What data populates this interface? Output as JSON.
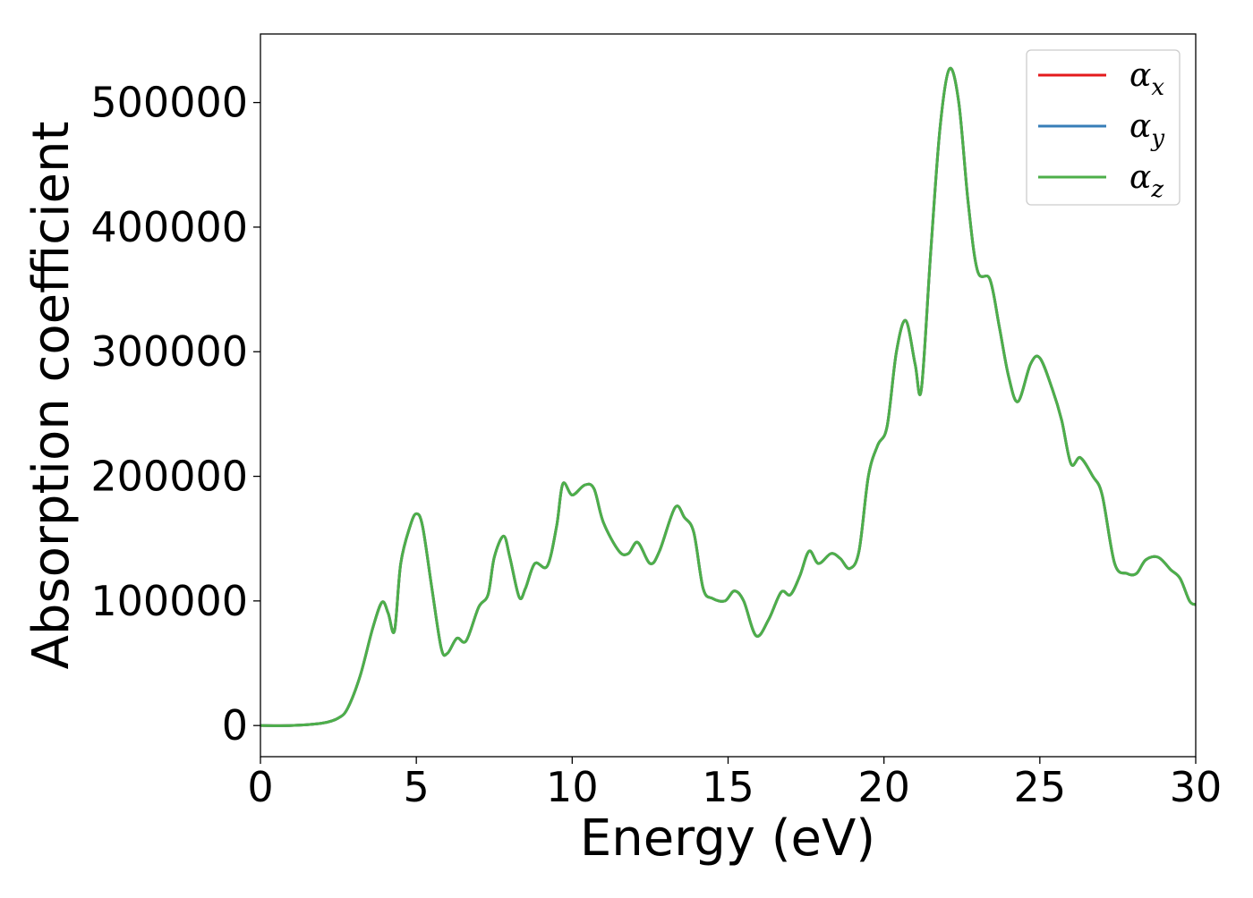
{
  "chart_data": {
    "type": "line",
    "title": "",
    "xlabel": "Energy (eV)",
    "ylabel": "Absorption coefficient",
    "xlim": [
      0,
      30
    ],
    "ylim": [
      -25000,
      555000
    ],
    "x_ticks": [
      0,
      5,
      10,
      15,
      20,
      25,
      30
    ],
    "x_tick_labels": [
      "0",
      "5",
      "10",
      "15",
      "20",
      "25",
      "30"
    ],
    "y_ticks": [
      0,
      100000,
      200000,
      300000,
      400000,
      500000
    ],
    "y_tick_labels": [
      "0",
      "100000",
      "200000",
      "300000",
      "400000",
      "500000"
    ],
    "grid": false,
    "legend_position": "top-right",
    "x": [
      0,
      1,
      2,
      2.5,
      2.8,
      3.2,
      3.6,
      3.9,
      4.1,
      4.3,
      4.5,
      4.8,
      5.0,
      5.2,
      5.5,
      5.8,
      6.0,
      6.3,
      6.6,
      7.0,
      7.3,
      7.5,
      7.8,
      8.0,
      8.3,
      8.5,
      8.8,
      9.2,
      9.5,
      9.7,
      10.0,
      10.4,
      10.7,
      11.0,
      11.5,
      11.8,
      12.1,
      12.5,
      12.8,
      13.3,
      13.6,
      13.9,
      14.2,
      14.5,
      14.9,
      15.2,
      15.5,
      15.9,
      16.3,
      16.7,
      17.0,
      17.3,
      17.6,
      17.9,
      18.3,
      18.6,
      18.9,
      19.2,
      19.5,
      19.8,
      20.1,
      20.4,
      20.7,
      21.0,
      21.2,
      21.5,
      21.8,
      22.1,
      22.4,
      22.7,
      23.0,
      23.4,
      23.7,
      24.0,
      24.3,
      24.7,
      25.0,
      25.4,
      25.7,
      26.0,
      26.3,
      26.7,
      27.0,
      27.4,
      27.8,
      28.1,
      28.4,
      28.8,
      29.2,
      29.5,
      29.8,
      30.0
    ],
    "series": [
      {
        "name": "αx",
        "color": "#e41a1c",
        "values": [
          0,
          0,
          2000,
          6000,
          14000,
          40000,
          78000,
          99000,
          90000,
          76000,
          130000,
          160000,
          170000,
          160000,
          110000,
          62000,
          58000,
          70000,
          68000,
          95000,
          105000,
          135000,
          152000,
          135000,
          103000,
          110000,
          130000,
          128000,
          160000,
          194000,
          185000,
          193000,
          190000,
          163000,
          140000,
          138000,
          147000,
          130000,
          140000,
          175000,
          167000,
          155000,
          110000,
          102000,
          100000,
          108000,
          100000,
          72000,
          85000,
          107000,
          105000,
          120000,
          140000,
          130000,
          138000,
          134000,
          126000,
          140000,
          200000,
          225000,
          240000,
          300000,
          325000,
          290000,
          270000,
          380000,
          480000,
          527000,
          500000,
          420000,
          365000,
          358000,
          320000,
          280000,
          260000,
          290000,
          295000,
          270000,
          245000,
          210000,
          215000,
          200000,
          185000,
          130000,
          122000,
          122000,
          133000,
          135000,
          125000,
          118000,
          100000,
          97000
        ]
      },
      {
        "name": "αy",
        "color": "#377eb8",
        "values": [
          0,
          0,
          2000,
          6000,
          14000,
          40000,
          78000,
          99000,
          90000,
          76000,
          130000,
          160000,
          170000,
          160000,
          110000,
          62000,
          58000,
          70000,
          68000,
          95000,
          105000,
          135000,
          152000,
          135000,
          103000,
          110000,
          130000,
          128000,
          160000,
          194000,
          185000,
          193000,
          190000,
          163000,
          140000,
          138000,
          147000,
          130000,
          140000,
          175000,
          167000,
          155000,
          110000,
          102000,
          100000,
          108000,
          100000,
          72000,
          85000,
          107000,
          105000,
          120000,
          140000,
          130000,
          138000,
          134000,
          126000,
          140000,
          200000,
          225000,
          240000,
          300000,
          325000,
          290000,
          270000,
          380000,
          480000,
          527000,
          500000,
          420000,
          365000,
          358000,
          320000,
          280000,
          260000,
          290000,
          295000,
          270000,
          245000,
          210000,
          215000,
          200000,
          185000,
          130000,
          122000,
          122000,
          133000,
          135000,
          125000,
          118000,
          100000,
          97000
        ]
      },
      {
        "name": "αz",
        "color": "#4daf4a",
        "values": [
          0,
          0,
          2000,
          6000,
          14000,
          40000,
          78000,
          99000,
          90000,
          76000,
          130000,
          160000,
          170000,
          160000,
          110000,
          62000,
          58000,
          70000,
          68000,
          95000,
          105000,
          135000,
          152000,
          135000,
          103000,
          110000,
          130000,
          128000,
          160000,
          194000,
          185000,
          193000,
          190000,
          163000,
          140000,
          138000,
          147000,
          130000,
          140000,
          175000,
          167000,
          155000,
          110000,
          102000,
          100000,
          108000,
          100000,
          72000,
          85000,
          107000,
          105000,
          120000,
          140000,
          130000,
          138000,
          134000,
          126000,
          140000,
          200000,
          225000,
          240000,
          300000,
          325000,
          290000,
          270000,
          380000,
          480000,
          527000,
          500000,
          420000,
          365000,
          358000,
          320000,
          280000,
          260000,
          290000,
          295000,
          270000,
          245000,
          210000,
          215000,
          200000,
          185000,
          130000,
          122000,
          122000,
          133000,
          135000,
          125000,
          118000,
          100000,
          97000
        ]
      }
    ],
    "legend": [
      {
        "base": "α",
        "sub": "x",
        "color": "#e41a1c"
      },
      {
        "base": "α",
        "sub": "y",
        "color": "#377eb8"
      },
      {
        "base": "α",
        "sub": "z",
        "color": "#4daf4a"
      }
    ]
  }
}
